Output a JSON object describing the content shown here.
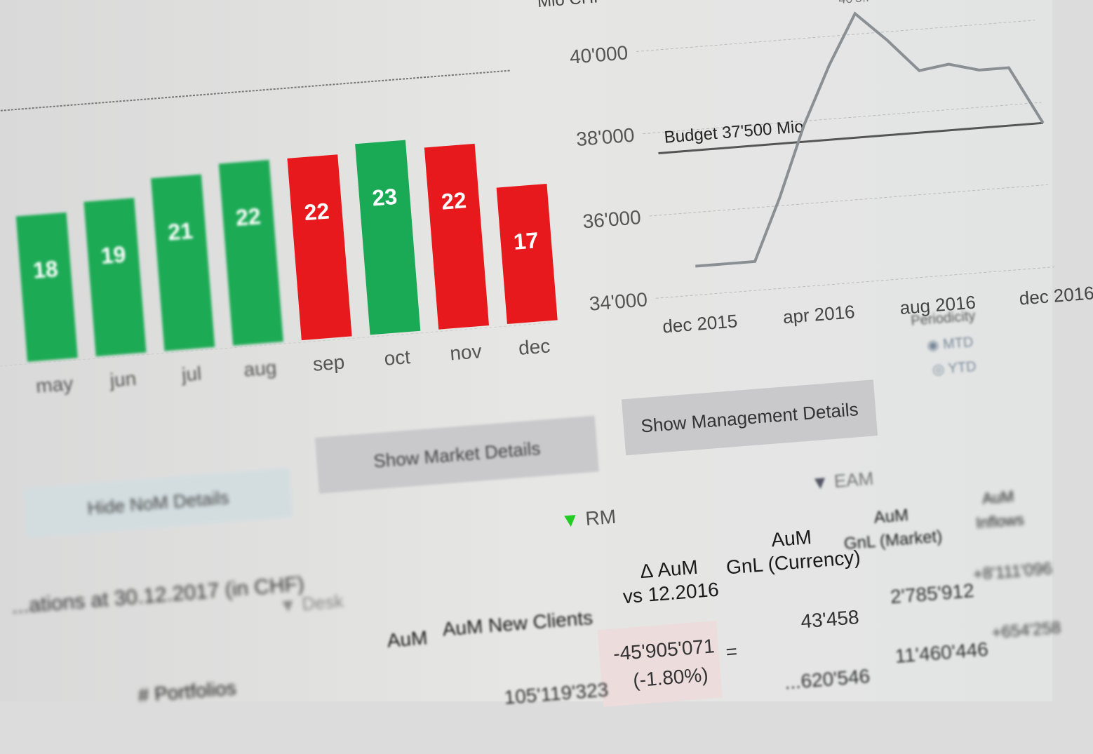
{
  "bar_chart": {
    "type": "bar",
    "categories": [
      "may",
      "jun",
      "jul",
      "aug",
      "sep",
      "oct",
      "nov",
      "dec"
    ],
    "values": [
      18,
      19,
      21,
      22,
      22,
      23,
      22,
      17
    ],
    "colors": [
      "#1aaa55",
      "#1aaa55",
      "#1aaa55",
      "#1aaa55",
      "#e8191c",
      "#1aaa55",
      "#e8191c",
      "#e8191c"
    ]
  },
  "chart_data": {
    "type": "line",
    "ylabel": "Mio CHF",
    "x": [
      "dec 2015",
      "jan 2016",
      "feb 2016",
      "mar 2016",
      "apr 2016",
      "may 2016",
      "jun 2016",
      "jul 2016",
      "aug 2016",
      "sep 2016",
      "oct 2016",
      "nov 2016",
      "dec 2016"
    ],
    "y": [
      34700,
      34700,
      34700,
      36200,
      37900,
      39300,
      40500,
      39800,
      39000,
      39100,
      38900,
      38900,
      37500
    ],
    "x_tick_labels": [
      "dec 2015",
      "apr 2016",
      "aug 2016",
      "dec 2016"
    ],
    "y_tick_labels": [
      "34'000",
      "36'000",
      "38'000",
      "40'000"
    ],
    "ylim": [
      34000,
      40800
    ],
    "peak_label": "40'5..",
    "budget": {
      "value": 37500,
      "label": "Budget 37'500 Mio"
    },
    "grid": true,
    "line_color": "#8a8f93"
  },
  "buttons": {
    "hide_details": "Hide NoM Details",
    "market_details": "Show Market Details",
    "management_details": "Show Management Details"
  },
  "periodicity": {
    "label": "Periodicity",
    "options": [
      "MTD",
      "YTD"
    ]
  },
  "filters": {
    "rm": "RM",
    "eam": "EAM",
    "desk": "Desk"
  },
  "table": {
    "title": "...ations at 30.12.2017 (in CHF)",
    "headers": [
      "# Portfolios",
      "AuM",
      "AuM New Clients",
      "Δ AuM\nvs 12.2016",
      "AuM\nGnL (Currency)",
      "AuM\nGnL (Market)",
      "AuM\nInflows"
    ],
    "row": {
      "aum": "105'119'323",
      "delta": "-45'905'071",
      "delta_pct": "(-1.80%)",
      "eq": "=",
      "gnl_currency": "43'458",
      "gnl_market": "2'785'912",
      "inflows": "+8'111'096"
    },
    "row2": {
      "gnl_currency": "...620'546",
      "gnl_market": "11'460'446",
      "inflows": "+654'258"
    }
  }
}
